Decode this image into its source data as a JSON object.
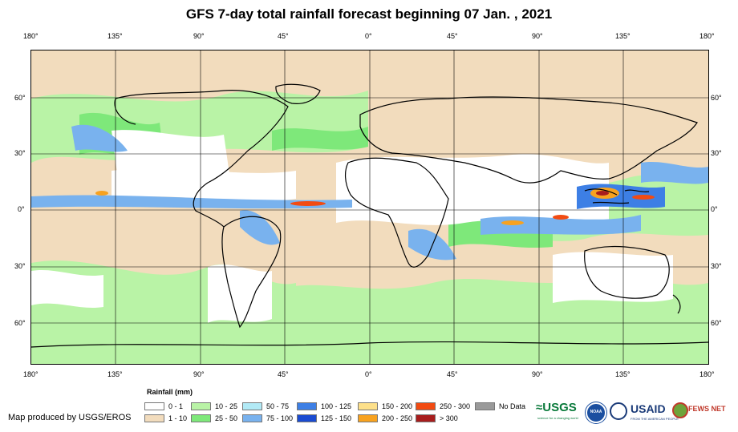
{
  "title": "GFS 7-day total rainfall forecast beginning 07 Jan. , 2021",
  "longitude_labels": [
    "180°",
    "135°",
    "90°",
    "45°",
    "0°",
    "45°",
    "90°",
    "135°",
    "180°"
  ],
  "latitude_labels": [
    "60°",
    "30°",
    "0°",
    "30°",
    "60°"
  ],
  "legend": {
    "title": "Rainfall (mm)",
    "items": [
      {
        "label": "0 - 1",
        "color": "#ffffff"
      },
      {
        "label": "1 - 10",
        "color": "#f2dcbd"
      },
      {
        "label": "10 - 25",
        "color": "#b9f3a6"
      },
      {
        "label": "25 - 50",
        "color": "#7ee87a"
      },
      {
        "label": "50 - 75",
        "color": "#b2eaf6"
      },
      {
        "label": "75 - 100",
        "color": "#79b2ee"
      },
      {
        "label": "100 - 125",
        "color": "#3d7fe5"
      },
      {
        "label": "125 - 150",
        "color": "#1a4bd1"
      },
      {
        "label": "150 - 200",
        "color": "#fde08a"
      },
      {
        "label": "200 - 250",
        "color": "#f8a21f"
      },
      {
        "label": "250 - 300",
        "color": "#f24b12"
      },
      {
        "label": "> 300",
        "color": "#a81d1d"
      },
      {
        "label": "No Data",
        "color": "#9a9a9a"
      }
    ]
  },
  "credit": "Map produced by USGS/EROS",
  "logos": {
    "usgs": "≈USGS",
    "usgs_tagline": "science for a changing world",
    "noaa": "NOAA",
    "usaid": "USAID",
    "usaid_tagline": "FROM THE AMERICAN PEOPLE",
    "fewsnet": "FEWS NET"
  }
}
